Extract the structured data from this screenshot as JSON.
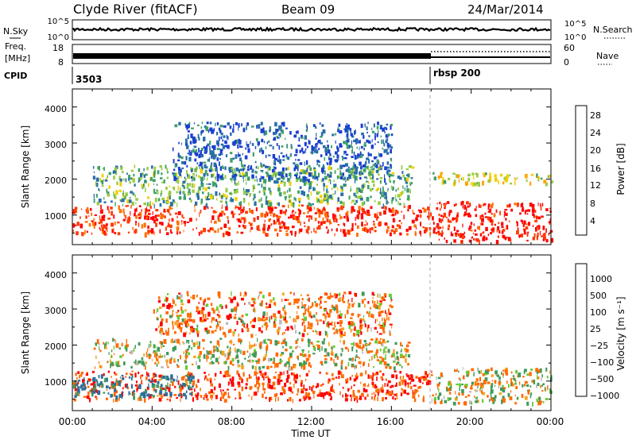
{
  "header": {
    "station": "Clyde River (fitACF)",
    "beam": "Beam 09",
    "date": "24/Mar/2014"
  },
  "top_panels": {
    "nsky": {
      "label": "N.Sky",
      "ticks": [
        "10^5",
        "10^0"
      ],
      "right_ticks": [
        "10^5",
        "10^0"
      ],
      "right_label": "N.Search"
    },
    "freq": {
      "label_line1": "Freq.",
      "label_line2": "[MHz]",
      "ticks": [
        "18",
        "8"
      ],
      "right_ticks": [
        "60",
        "0"
      ],
      "right_label": "Nave"
    },
    "cpid": {
      "label": "CPID",
      "segments": [
        {
          "name": "3503",
          "start_hour": 0
        },
        {
          "name": "rbsp 200",
          "start_hour": 18
        }
      ]
    }
  },
  "power_panel": {
    "ylabel": "Slant Range [km]",
    "yticks": [
      "4000",
      "3000",
      "2000",
      "1000"
    ],
    "colorbar": {
      "label": "Power [dB]",
      "ticks": [
        "28",
        "24",
        "20",
        "16",
        "12",
        "8",
        "4"
      ],
      "colors": [
        "#ff0000",
        "#ff3a00",
        "#ff7000",
        "#ffa500",
        "#f0d000",
        "#99cc44",
        "#3fa06a",
        "#2a6fa8",
        "#1a3fd0"
      ]
    }
  },
  "velocity_panel": {
    "ylabel": "Slant Range [km]",
    "yticks": [
      "4000",
      "3000",
      "2000",
      "1000"
    ],
    "colorbar": {
      "label": "Velocity [m s⁻¹]",
      "ticks": [
        "1000",
        "500",
        "100",
        "25",
        "−25",
        "−100",
        "−500",
        "−1000"
      ],
      "colors": [
        "#1a3fbf",
        "#2c6f9a",
        "#3f9a5a",
        "#66cc33",
        "#bbbbbb",
        "#f5a623",
        "#ff6a00",
        "#ff0000"
      ]
    }
  },
  "x_axis": {
    "label": "Time UT",
    "ticks": [
      "00:00",
      "04:00",
      "08:00",
      "12:00",
      "16:00",
      "20:00",
      "00:00"
    ]
  },
  "chart_data": {
    "type": "heatmap",
    "x_range_hours": [
      0,
      24
    ],
    "y_range_km": [
      180,
      4500
    ],
    "mode_change_hour": 18,
    "power_regions": [
      {
        "t0": 0,
        "t1": 18,
        "r0": 500,
        "r1": 1300,
        "level": "strong",
        "typical_dB": 28
      },
      {
        "t0": 1,
        "t1": 17,
        "r0": 1300,
        "r1": 2400,
        "level": "moderate",
        "typical_dB": 12
      },
      {
        "t0": 5,
        "t1": 16,
        "r0": 2000,
        "r1": 3600,
        "level": "weak",
        "typical_dB": 6
      },
      {
        "t0": 18,
        "t1": 24,
        "r0": 300,
        "r1": 1400,
        "level": "strong",
        "typical_dB": 30
      },
      {
        "t0": 18,
        "t1": 24,
        "r0": 1900,
        "r1": 2200,
        "level": "moderate",
        "typical_dB": 16
      }
    ],
    "velocity_regions": [
      {
        "t0": 0,
        "t1": 18,
        "r0": 500,
        "r1": 1300,
        "typical_m_s": -300
      },
      {
        "t0": 0,
        "t1": 6,
        "r0": 600,
        "r1": 1200,
        "typical_m_s": 400
      },
      {
        "t0": 1,
        "t1": 17,
        "r0": 1400,
        "r1": 2200,
        "typical_m_s": 0
      },
      {
        "t0": 4,
        "t1": 16,
        "r0": 2300,
        "r1": 3500,
        "typical_m_s": -150
      },
      {
        "t0": 18,
        "t1": 24,
        "r0": 400,
        "r1": 1400,
        "typical_m_s": 0
      }
    ]
  }
}
